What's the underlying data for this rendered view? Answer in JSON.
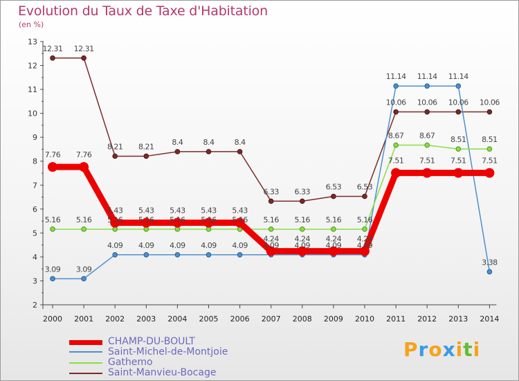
{
  "chart_data": {
    "type": "line",
    "title": "Evolution du Taux de Taxe d'Habitation",
    "unit_label": "(en %)",
    "xlabel": "",
    "ylabel": "",
    "ylim": [
      2,
      13
    ],
    "yticks": [
      2,
      3,
      4,
      5,
      6,
      7,
      8,
      9,
      10,
      11,
      12,
      13
    ],
    "categories": [
      "2000",
      "2001",
      "2002",
      "2003",
      "2004",
      "2005",
      "2006",
      "2007",
      "2008",
      "2009",
      "2010",
      "2011",
      "2012",
      "2013",
      "2014"
    ],
    "series": [
      {
        "name": "CHAMP-DU-BOULT",
        "color": "#ee0000",
        "values": [
          7.76,
          7.76,
          5.43,
          5.43,
          5.43,
          5.43,
          5.43,
          4.24,
          4.24,
          4.24,
          4.24,
          7.51,
          7.51,
          7.51,
          7.51
        ],
        "labels": [
          "7.76",
          "7.76",
          "5.43",
          "5.43",
          "5.43",
          "5.43",
          "5.43",
          "4.24",
          "4.24",
          "4.24",
          "4.24",
          "7.51",
          "7.51",
          "7.51",
          "7.51"
        ]
      },
      {
        "name": "Saint-Michel-de-Montjoie",
        "color": "#4d8fcc",
        "values": [
          3.09,
          3.09,
          4.09,
          4.09,
          4.09,
          4.09,
          4.09,
          4.09,
          4.09,
          4.09,
          4.09,
          11.14,
          11.14,
          11.14,
          3.38
        ],
        "labels": [
          "3.09",
          "3.09",
          "4.09",
          "4.09",
          "4.09",
          "4.09",
          "4.09",
          "4.09",
          "4.09",
          "4.09",
          "4.09",
          "11.14",
          "11.14",
          "11.14",
          "3.38"
        ]
      },
      {
        "name": "Gathemo",
        "color": "#88dd44",
        "values": [
          5.16,
          5.16,
          5.16,
          5.16,
          5.16,
          5.16,
          5.16,
          5.16,
          5.16,
          5.16,
          5.16,
          8.67,
          8.67,
          8.51,
          8.51
        ],
        "labels": [
          "5.16",
          "5.16",
          "5.16",
          "5.16",
          "5.16",
          "5.16",
          "5.16",
          "5.16",
          "5.16",
          "5.16",
          "5.16",
          "8.67",
          "8.67",
          "8.51",
          "8.51"
        ]
      },
      {
        "name": "Saint-Manvieu-Bocage",
        "color": "#7a2a2a",
        "values": [
          12.31,
          12.31,
          8.21,
          8.21,
          8.4,
          8.4,
          8.4,
          6.33,
          6.33,
          6.53,
          6.53,
          10.06,
          10.06,
          10.06,
          10.06
        ],
        "labels": [
          "12.31",
          "12.31",
          "8.21",
          "8.21",
          "8.4",
          "8.4",
          "8.4",
          "6.33",
          "6.33",
          "6.53",
          "6.53",
          "10.06",
          "10.06",
          "10.06",
          "10.06"
        ]
      }
    ],
    "legend_position": "bottom-left"
  },
  "logo": {
    "letters": [
      "P",
      "r",
      "o",
      "x",
      "i",
      "t",
      "i"
    ],
    "colors": [
      "#f5a31a",
      "#3c9be0",
      "#f5a31a",
      "#3c9be0",
      "#f5a31a",
      "#66bb33",
      "#f5a31a"
    ]
  }
}
